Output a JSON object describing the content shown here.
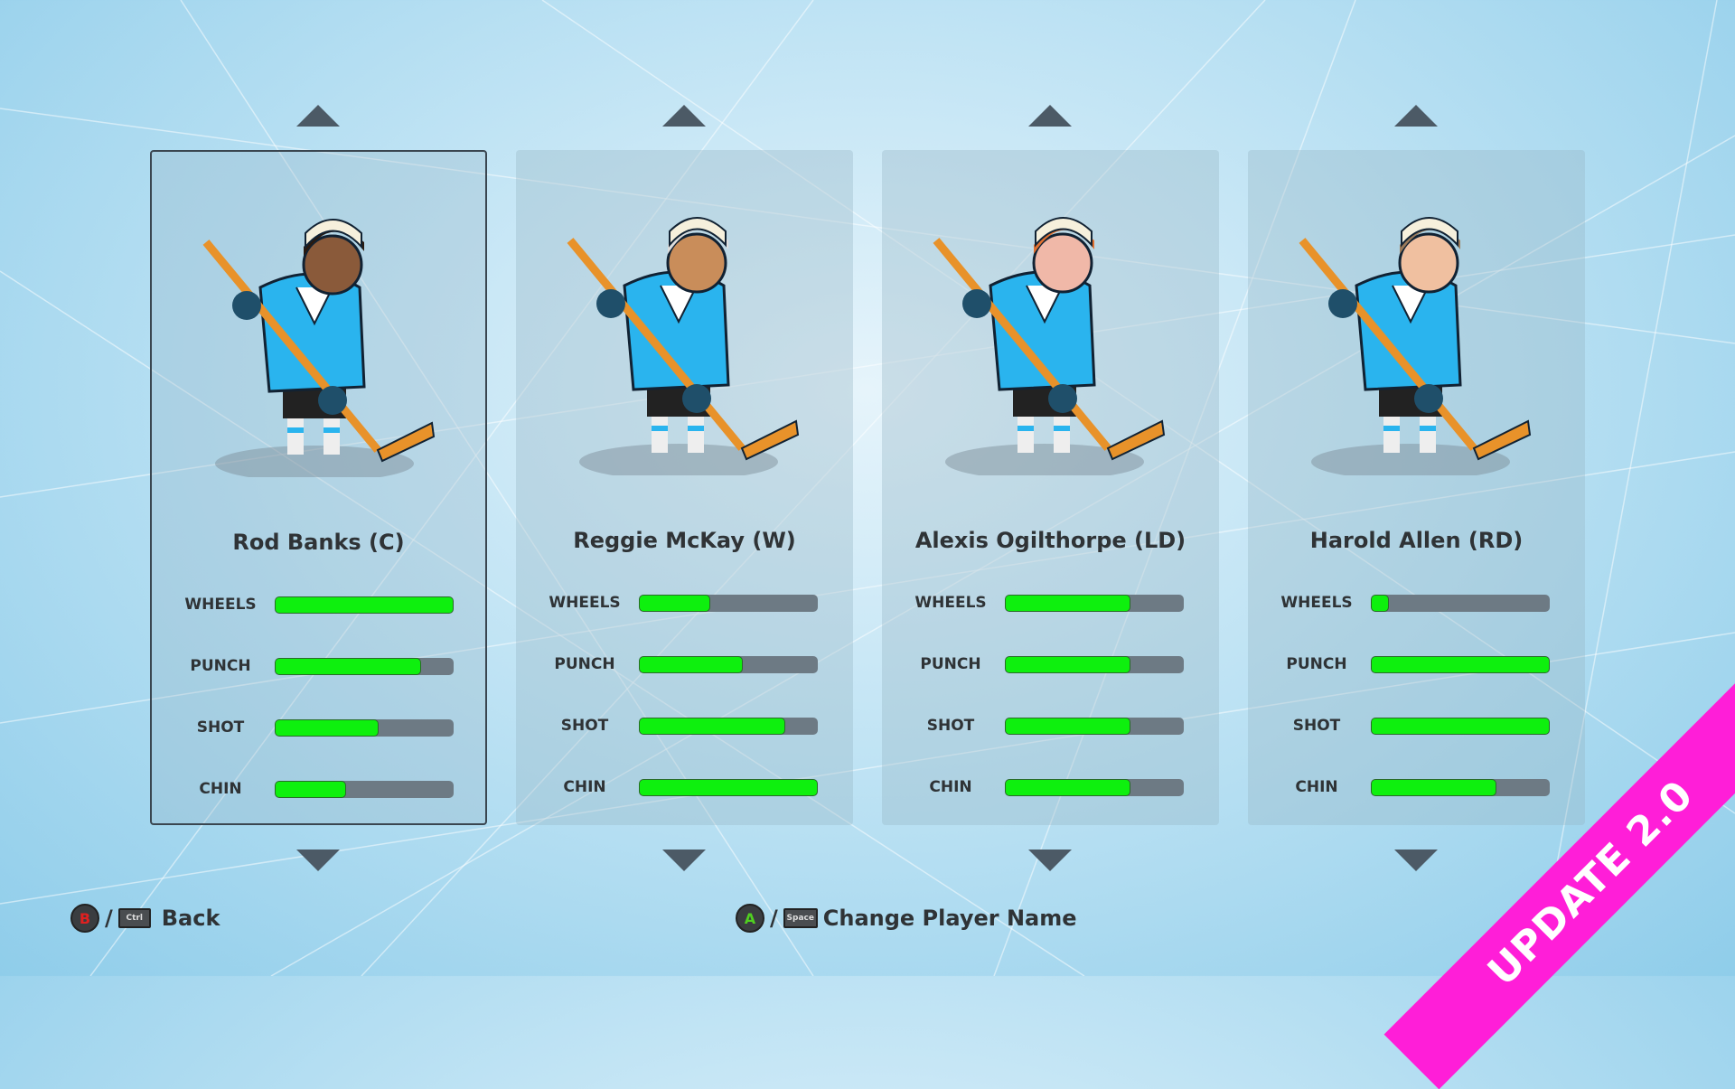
{
  "stat_labels": [
    "WHEELS",
    "PUNCH",
    "SHOT",
    "CHIN"
  ],
  "players": [
    {
      "name": "Rod Banks (C)",
      "selected": true,
      "stats": {
        "wheels": 100,
        "punch": 82,
        "shot": 58,
        "chin": 40
      },
      "skin": "#8a5a3a",
      "hair": "#2a1a10"
    },
    {
      "name": "Reggie McKay (W)",
      "selected": false,
      "stats": {
        "wheels": 40,
        "punch": 58,
        "shot": 82,
        "chin": 100
      },
      "skin": "#c98d5a",
      "hair": "#ddd"
    },
    {
      "name": "Alexis Ogilthorpe (LD)",
      "selected": false,
      "stats": {
        "wheels": 70,
        "punch": 70,
        "shot": 70,
        "chin": 70
      },
      "skin": "#f0b8a8",
      "hair": "#e07030"
    },
    {
      "name": "Harold Allen (RD)",
      "selected": false,
      "stats": {
        "wheels": 10,
        "punch": 100,
        "shot": 100,
        "chin": 70
      },
      "skin": "#f0c0a0",
      "hair": "#9a7a5a"
    }
  ],
  "hints": {
    "back": {
      "gamepad_button": "B",
      "key": "Ctrl",
      "label": "Back",
      "button_color": "#e02020"
    },
    "rename": {
      "gamepad_button": "A",
      "key": "Space",
      "label": "Change Player Name",
      "button_color": "#50d020"
    },
    "separator": "/"
  },
  "banner": "UPDATE 2.0",
  "colors": {
    "stat_fill": "#0ef00e",
    "jersey": "#2ab4ee",
    "banner": "#ff1ed8"
  }
}
